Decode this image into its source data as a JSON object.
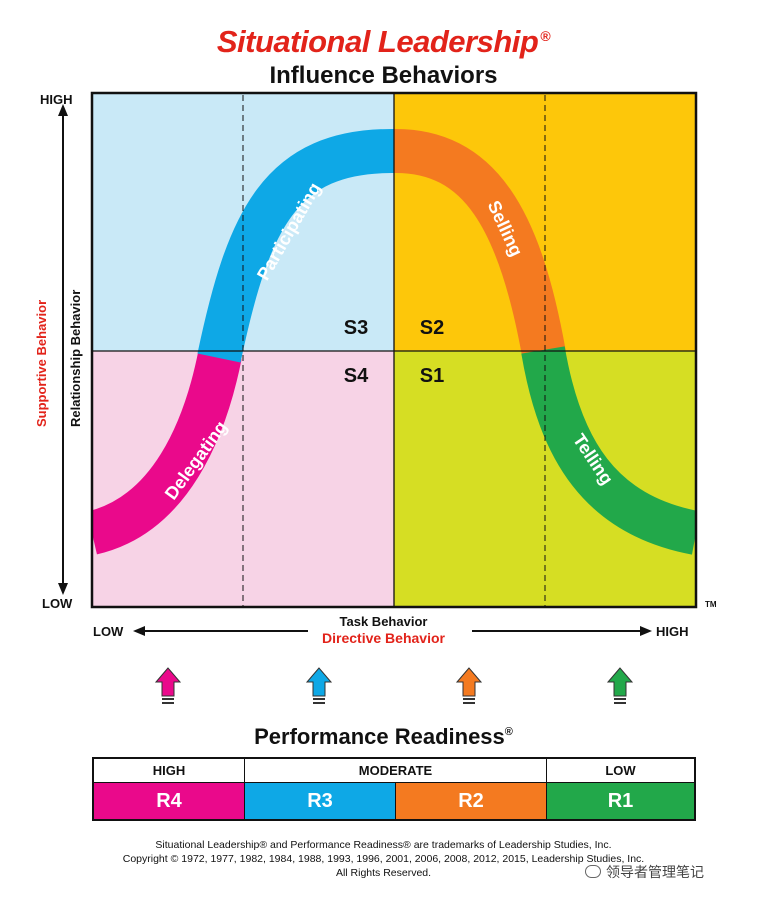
{
  "header": {
    "title": "Situational Leadership",
    "title_mark": "®",
    "subtitle": "Influence Behaviors"
  },
  "y_axis": {
    "high": "HIGH",
    "low": "LOW",
    "label_primary": "Relationship Behavior",
    "label_secondary": "Supportive Behavior"
  },
  "x_axis": {
    "low": "LOW",
    "high": "HIGH",
    "label_primary": "Task Behavior",
    "label_secondary": "Directive Behavior",
    "trademark": "TM"
  },
  "quadrants": {
    "s3": "S3",
    "s2": "S2",
    "s4": "S4",
    "s1": "S1"
  },
  "curve_labels": {
    "delegating": "Delegating",
    "participating": "Participating",
    "selling": "Selling",
    "telling": "Telling"
  },
  "readiness": {
    "title": "Performance Readiness",
    "title_mark": "®",
    "headers": [
      "HIGH",
      "MODERATE",
      "LOW"
    ],
    "levels": [
      "R4",
      "R3",
      "R2",
      "R1"
    ]
  },
  "colors": {
    "title_red": "#e2231a",
    "q_top_left": "#c9e9f7",
    "q_top_right": "#fdc70a",
    "q_bottom_left": "#f7d3e6",
    "q_bottom_right": "#d6de23",
    "r4": "#ea098b",
    "r3": "#0ea8e6",
    "r2": "#f47a20",
    "r1": "#22a84a"
  },
  "footer": {
    "line1": "Situational Leadership® and Performance Readiness® are trademarks of Leadership Studies, Inc.",
    "line2": "Copyright © 1972, 1977, 1982, 1984, 1988, 1993, 1996, 2001, 2006, 2008, 2012, 2015, Leadership Studies, Inc.",
    "line3": "All Rights Reserved."
  },
  "watermark": "领导者管理笔记"
}
